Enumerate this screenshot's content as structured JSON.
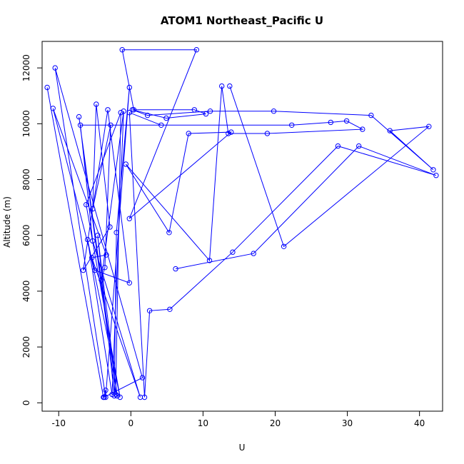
{
  "chart_data": {
    "type": "line",
    "title": "ATOM1 Northeast_Pacific U",
    "xlabel": "U",
    "ylabel": "Altitude (m)",
    "xlim": [
      -12.3,
      43.2
    ],
    "ylim": [
      -300,
      12950
    ],
    "xticks": [
      -10,
      0,
      10,
      20,
      30,
      40
    ],
    "yticks": [
      0,
      2000,
      4000,
      6000,
      8000,
      10000,
      12000
    ],
    "grid": false,
    "series_color": "#0000FF",
    "series": [
      {
        "points": [
          [
            -11.6,
            11300
          ],
          [
            -3.8,
            200
          ],
          [
            -3.5,
            450
          ],
          [
            -3.7,
            200
          ],
          [
            1.6,
            900
          ],
          [
            -10.5,
            12000
          ],
          [
            -3.5,
            200
          ],
          [
            -0.2,
            11300
          ],
          [
            -2.0,
            6100
          ],
          [
            -2.3,
            250
          ],
          [
            -4.6,
            6000
          ],
          [
            -1.9,
            250
          ],
          [
            -7.2,
            10250
          ],
          [
            -2.1,
            300
          ],
          [
            -1.4,
            10400
          ],
          [
            -6.2,
            7100
          ],
          [
            -1.5,
            200
          ],
          [
            -6.0,
            5850
          ],
          [
            -2.6,
            300
          ],
          [
            -1.0,
            10450
          ],
          [
            -4.1,
            4400
          ],
          [
            -3.6,
            4850
          ],
          [
            -2.8,
            9950
          ],
          [
            -5.3,
            6950
          ],
          [
            -4.8,
            10700
          ],
          [
            -2.9,
            6300
          ],
          [
            -6.6,
            4750
          ],
          [
            -3.2,
            10500
          ],
          [
            -0.2,
            4300
          ],
          [
            -5.0,
            4750
          ],
          [
            -10.8,
            10550
          ],
          [
            -3.4,
            5300
          ],
          [
            -5.4,
            5200
          ],
          [
            1.3,
            200
          ],
          [
            -5.3,
            5800
          ],
          [
            -7.0,
            9950
          ],
          [
            22.3,
            9950
          ],
          [
            27.7,
            10050
          ],
          [
            29.9,
            10100
          ],
          [
            32.1,
            9800
          ],
          [
            18.9,
            9650
          ],
          [
            13.5,
            9650
          ],
          [
            12.6,
            11350
          ],
          [
            10.9,
            5100
          ],
          [
            -0.7,
            8550
          ],
          [
            5.3,
            6100
          ],
          [
            8.0,
            9650
          ],
          [
            13.9,
            9700
          ],
          [
            -0.2,
            6600
          ],
          [
            9.1,
            12650
          ],
          [
            -1.2,
            12650
          ],
          [
            0.4,
            10500
          ],
          [
            8.8,
            10500
          ],
          [
            10.4,
            10350
          ],
          [
            4.9,
            10200
          ],
          [
            0.2,
            10500
          ],
          [
            2.3,
            10300
          ],
          [
            11.0,
            10450
          ],
          [
            19.8,
            10450
          ],
          [
            33.3,
            10300
          ],
          [
            41.9,
            8350
          ],
          [
            35.9,
            9750
          ],
          [
            41.3,
            9900
          ],
          [
            21.2,
            5600
          ],
          [
            13.7,
            11350
          ]
        ]
      },
      {
        "points": [
          [
            4.2,
            9950
          ],
          [
            -0.2,
            10400
          ],
          [
            1.9,
            200
          ],
          [
            2.6,
            3300
          ],
          [
            5.4,
            3350
          ],
          [
            14.1,
            5400
          ],
          [
            28.7,
            9200
          ],
          [
            42.3,
            8150
          ],
          [
            31.6,
            9200
          ],
          [
            17.0,
            5350
          ],
          [
            6.2,
            4800
          ]
        ]
      }
    ]
  }
}
